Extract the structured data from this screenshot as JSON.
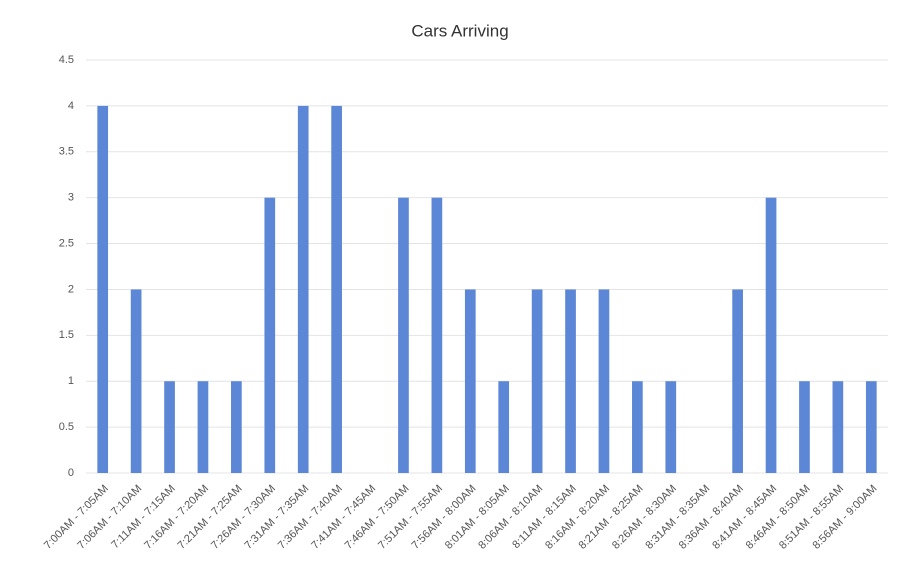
{
  "chart_data": {
    "type": "bar",
    "title": "Cars Arriving",
    "categories": [
      "7:00AM - 7:05AM",
      "7:06AM - 7:10AM",
      "7:11AM - 7:15AM",
      "7:16AM - 7:20AM",
      "7:21AM - 7:25AM",
      "7:26AM - 7:30AM",
      "7:31AM - 7:35AM",
      "7:36AM - 7:40AM",
      "7:41AM - 7:45AM",
      "7:46AM - 7:50AM",
      "7:51AM - 7:55AM",
      "7:56AM - 8:00AM",
      "8:01AM - 8:05AM",
      "8:06AM - 8:10AM",
      "8:11AM - 8:15AM",
      "8:16AM - 8:20AM",
      "8:21AM - 8:25AM",
      "8:26AM - 8:30AM",
      "8:31AM - 8:35AM",
      "8:36AM - 8:40AM",
      "8:41AM - 8:45AM",
      "8:46AM - 8:50AM",
      "8:51AM - 8:55AM",
      "8:56AM - 9:00AM"
    ],
    "values": [
      4,
      2,
      1,
      1,
      1,
      3,
      4,
      4,
      0,
      3,
      3,
      2,
      1,
      2,
      2,
      2,
      1,
      1,
      0,
      2,
      3,
      1,
      1,
      1
    ],
    "color": "#5b87d6",
    "ylim": [
      0,
      4.5
    ],
    "yticks": [
      0,
      0.5,
      1,
      1.5,
      2,
      2.5,
      3,
      3.5,
      4,
      4.5
    ],
    "grid": true
  }
}
